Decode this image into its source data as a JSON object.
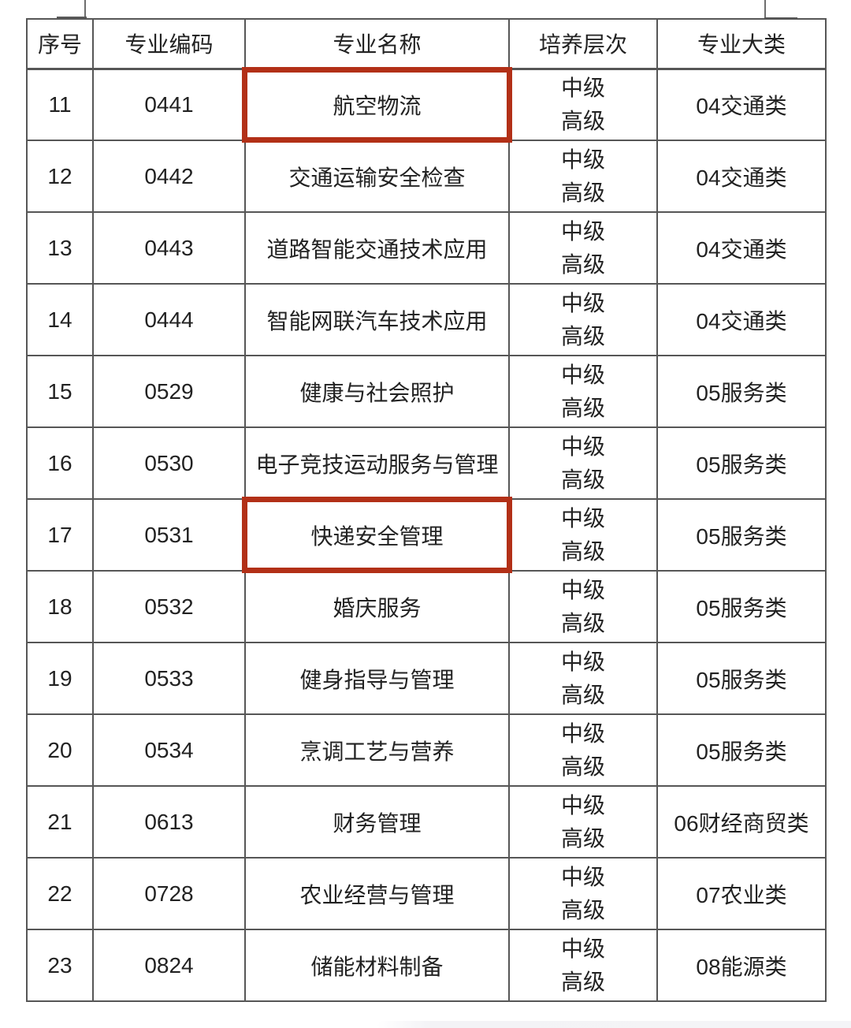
{
  "table": {
    "highlight_color": "#b23017",
    "columns": [
      {
        "key": "index",
        "label": "序号"
      },
      {
        "key": "code",
        "label": "专业编码"
      },
      {
        "key": "name",
        "label": "专业名称"
      },
      {
        "key": "levels",
        "label": "培养层次"
      },
      {
        "key": "category",
        "label": "专业大类"
      }
    ],
    "rows": [
      {
        "index": "11",
        "code": "0441",
        "name": "航空物流",
        "levels": [
          "中级",
          "高级"
        ],
        "category": "04交通类",
        "highlighted": true
      },
      {
        "index": "12",
        "code": "0442",
        "name": "交通运输安全检查",
        "levels": [
          "中级",
          "高级"
        ],
        "category": "04交通类",
        "highlighted": false
      },
      {
        "index": "13",
        "code": "0443",
        "name": "道路智能交通技术应用",
        "levels": [
          "中级",
          "高级"
        ],
        "category": "04交通类",
        "highlighted": false
      },
      {
        "index": "14",
        "code": "0444",
        "name": "智能网联汽车技术应用",
        "levels": [
          "中级",
          "高级"
        ],
        "category": "04交通类",
        "highlighted": false
      },
      {
        "index": "15",
        "code": "0529",
        "name": "健康与社会照护",
        "levels": [
          "中级",
          "高级"
        ],
        "category": "05服务类",
        "highlighted": false
      },
      {
        "index": "16",
        "code": "0530",
        "name": "电子竞技运动服务与管理",
        "levels": [
          "中级",
          "高级"
        ],
        "category": "05服务类",
        "highlighted": false
      },
      {
        "index": "17",
        "code": "0531",
        "name": "快递安全管理",
        "levels": [
          "中级",
          "高级"
        ],
        "category": "05服务类",
        "highlighted": true
      },
      {
        "index": "18",
        "code": "0532",
        "name": "婚庆服务",
        "levels": [
          "中级",
          "高级"
        ],
        "category": "05服务类",
        "highlighted": false
      },
      {
        "index": "19",
        "code": "0533",
        "name": "健身指导与管理",
        "levels": [
          "中级",
          "高级"
        ],
        "category": "05服务类",
        "highlighted": false
      },
      {
        "index": "20",
        "code": "0534",
        "name": "烹调工艺与营养",
        "levels": [
          "中级",
          "高级"
        ],
        "category": "05服务类",
        "highlighted": false
      },
      {
        "index": "21",
        "code": "0613",
        "name": "财务管理",
        "levels": [
          "中级",
          "高级"
        ],
        "category": "06财经商贸类",
        "highlighted": false
      },
      {
        "index": "22",
        "code": "0728",
        "name": "农业经营与管理",
        "levels": [
          "中级",
          "高级"
        ],
        "category": "07农业类",
        "highlighted": false
      },
      {
        "index": "23",
        "code": "0824",
        "name": "储能材料制备",
        "levels": [
          "中级",
          "高级"
        ],
        "category": "08能源类",
        "highlighted": false
      }
    ]
  }
}
